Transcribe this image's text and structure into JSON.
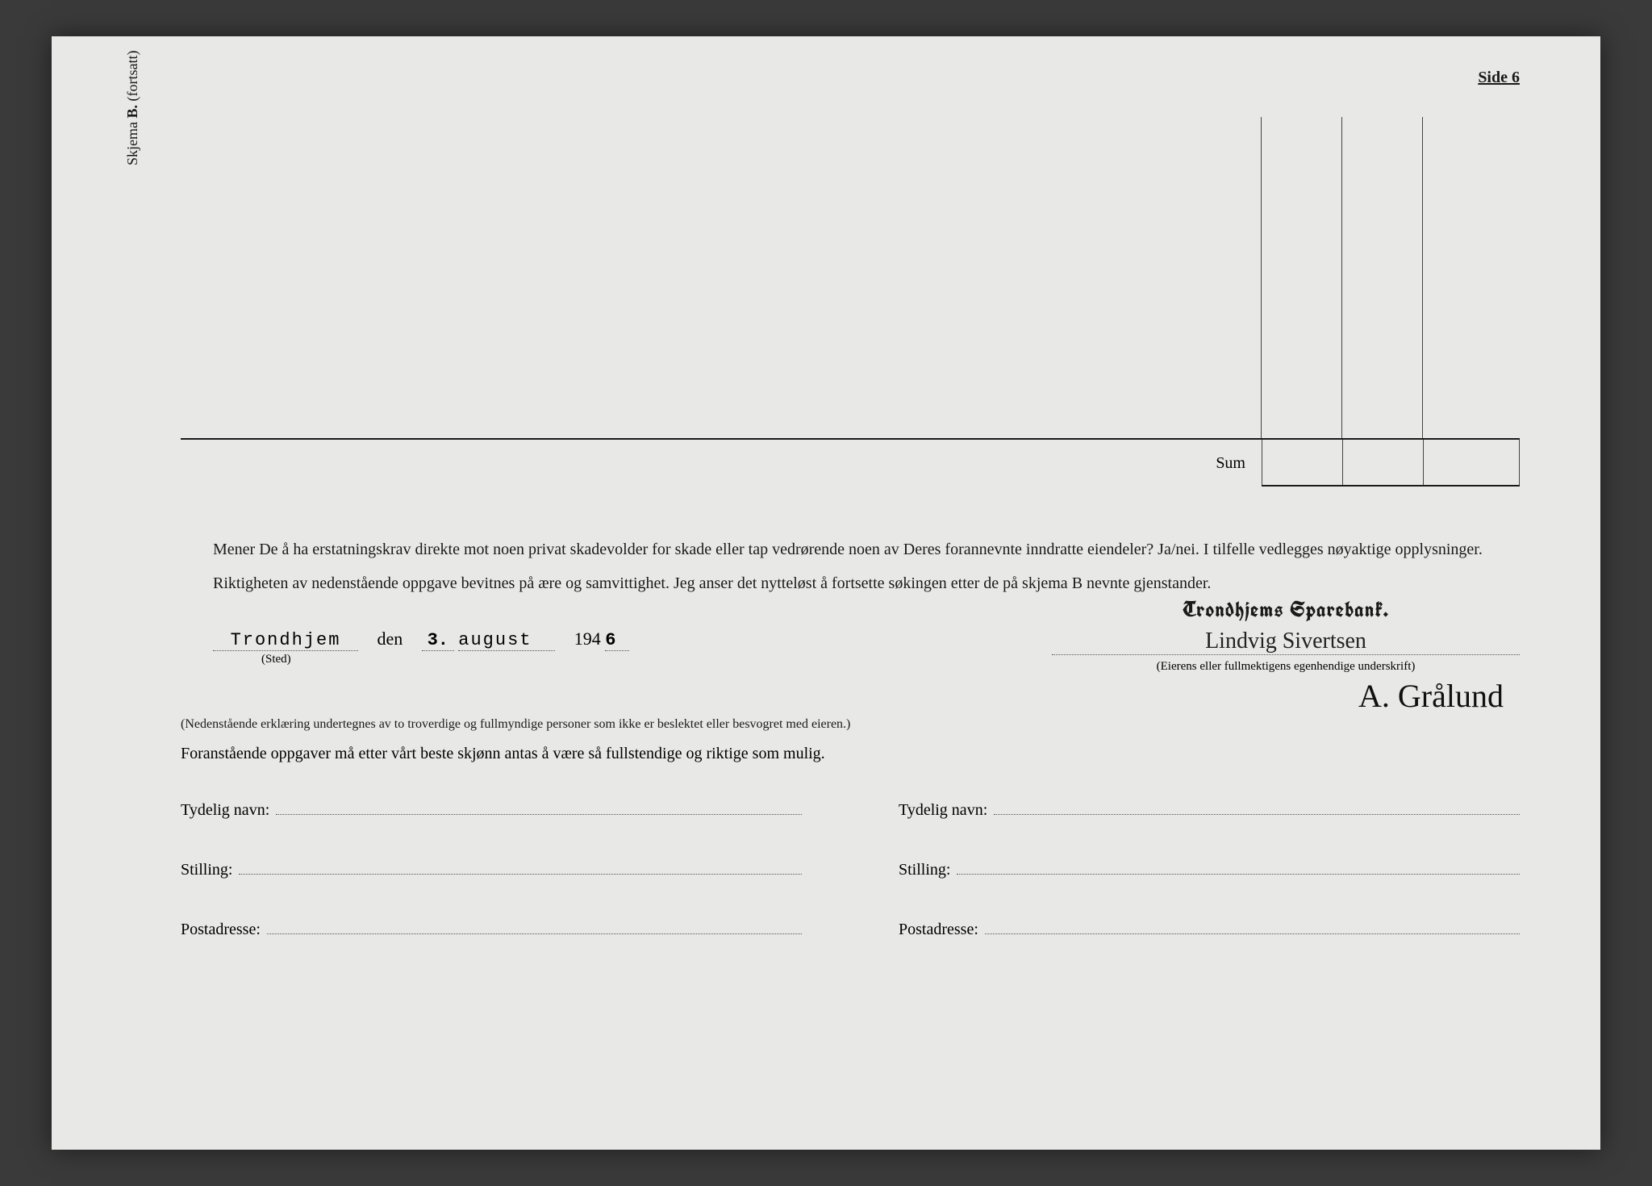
{
  "page_label": "Side 6",
  "vertical_label_prefix": "Skjema ",
  "vertical_label_bold": "B.",
  "vertical_label_suffix": " (fortsatt)",
  "sum_label": "Sum",
  "para1": "Mener De å ha erstatningskrav direkte mot noen privat skadevolder for skade eller tap vedrørende noen av Deres forannevnte inndratte eiendeler? Ja/nei. I tilfelle vedlegges nøyaktige opplysninger.",
  "para2": "Riktigheten av nedenstående oppgave bevitnes på ære og samvittighet. Jeg anser det nytteløst å fortsette søkingen etter de på skjema B nevnte gjenstander.",
  "date": {
    "place": "Trondhjem",
    "sted_label": "(Sted)",
    "den": "den",
    "day": "3.",
    "month": "august",
    "year_prefix": "194",
    "year_fill": "6"
  },
  "signature": {
    "stamp": "Trondhjems Sparebank.",
    "line1": "Lindvig Sivertsen",
    "caption": "(Eierens eller fullmektigens egenhendige underskrift)",
    "line2": "A. Grålund"
  },
  "note_text": "(Nedenstående erklæring undertegnes av to troverdige og fullmyndige personer som ikke er beslektet eller besvogret med eieren.)",
  "declaration_text": "Foranstående oppgaver må etter vårt beste skjønn antas å være så fullstendige og riktige som mulig.",
  "witness": {
    "name_label": "Tydelig navn:",
    "position_label": "Stilling:",
    "address_label": "Postadresse:"
  }
}
